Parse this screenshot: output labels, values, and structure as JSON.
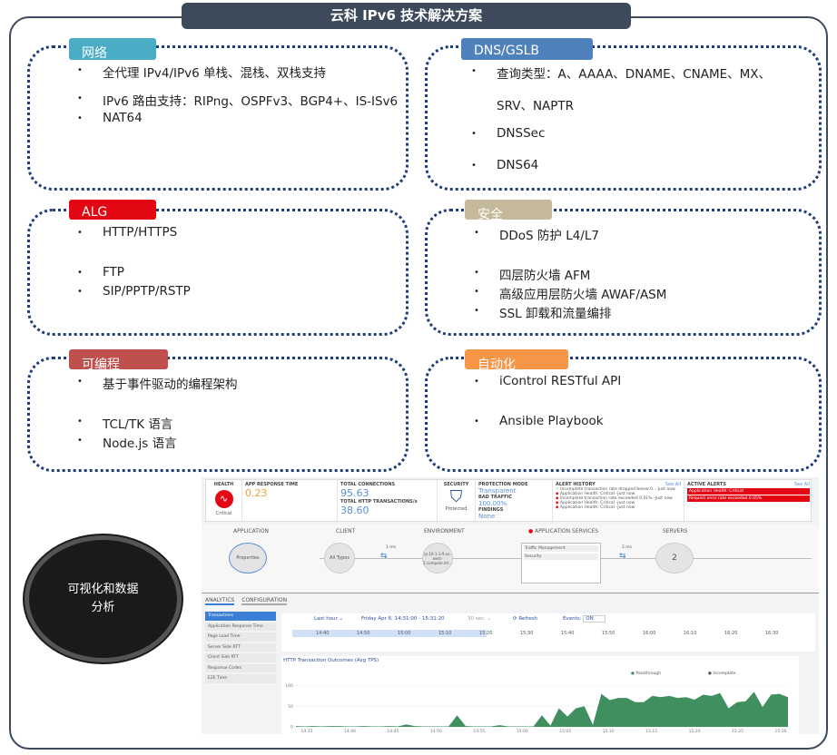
{
  "title": "云科 IPv6 技术解决方案",
  "panels": [
    {
      "tab": "网络",
      "color": "#4bacc6",
      "items": [
        "全代理 IPv4/IPv6 单栈、混栈、双栈支持",
        "IPv6 路由支持：RIPng、OSPFv3、BGP4+、IS-ISv6",
        "NAT64"
      ]
    },
    {
      "tab": "DNS/GSLB",
      "color": "#4f81bd",
      "items": [
        "查询类型：A、AAAA、DNAME、CNAME、MX、",
        "SRV、NAPTR",
        "DNSSec",
        "DNS64"
      ]
    },
    {
      "tab": "ALG",
      "color": "#e30613",
      "items": [
        "HTTP/HTTPS",
        "FTP",
        "SIP/PPTP/RSTP"
      ]
    },
    {
      "tab": "安全",
      "color": "#c4b99a",
      "items": [
        "DDoS 防护 L4/L7",
        "四层防火墙 AFM",
        "高级应用层防火墙 AWAF/ASM",
        "SSL 卸载和流量编排"
      ]
    },
    {
      "tab": "可编程",
      "color": "#c0504d",
      "items": [
        "基于事件驱动的编程架构",
        "TCL/TK 语言",
        "Node.js 语言"
      ]
    },
    {
      "tab": "自动化",
      "color": "#f79646",
      "items": [
        "iControl RESTful API",
        "Ansible Playbook"
      ]
    }
  ],
  "bullet": "•",
  "circle_text": "可视化和数据分析",
  "dashboard": {
    "health": {
      "label": "HEALTH",
      "status": "Critical"
    },
    "app_response": {
      "label": "APP RESPONSE TIME",
      "value": "0.23"
    },
    "connections": {
      "label": "TOTAL CONNECTIONS",
      "value": "95.63",
      "http_label": "TOTAL HTTP TRANSACTIONS/s",
      "http_value": "38.60"
    },
    "security": {
      "label": "SECURITY",
      "status": "Protected"
    },
    "protection": {
      "label": "PROTECTION MODE",
      "value": "Transparent",
      "bad_label": "BAD TRAFFIC",
      "bad_value": "100.00%",
      "findings_label": "FINDINGS",
      "findings_value": "None"
    },
    "alert_history": {
      "label": "ALERT HISTORY",
      "see_all": "See All",
      "items": [
        "Incomplete transaction rate dropped below 0... Just now",
        "Application Health: Critical -Just now",
        "Incomplete transaction rate exceeded 0.01% -Just now",
        "Application Health: Critical -Just now",
        "Application Health: Critical -Just now"
      ]
    },
    "active_alerts": {
      "label": "ACTIVE ALERTS",
      "see_all": "See All",
      "items": [
        "Application Health: Critical",
        "Request error rate exceeded 0.05%"
      ]
    },
    "flow": {
      "application": "APPLICATION",
      "client": "CLIENT",
      "environment": "ENVIRONMENT",
      "app_services": "APPLICATION SERVICES",
      "servers": "SERVERS",
      "properties": "Properties",
      "all_types": "All Types",
      "env_node": "ip-10-1-1-9.us-west-2.compute.int...",
      "client_latency": "1 ms",
      "server_latency": "2 ms",
      "traffic_mgmt": "Traffic Management",
      "security": "Security",
      "server_count": "2"
    },
    "tabs": [
      "ANALYTICS",
      "CONFIGURATION"
    ],
    "menu": [
      "Transactions",
      "Application Response Time",
      "Page Load Time",
      "Server Side RTT",
      "Client Side RTT",
      "Response Codes",
      "E2E Time"
    ],
    "range": "Last hour ⌄",
    "date": "Friday Apr 6, 14:31:00 - 15:31:20",
    "interval": "30 sec. ⌄",
    "refresh": "⟳ Refresh",
    "events_label": "Events:",
    "events_value": "ON",
    "timeline": [
      "14:40",
      "14:50",
      "15:00",
      "15:10",
      "15:20",
      "15:30",
      "15:40",
      "15:50",
      "16:00",
      "16:10",
      "16:20",
      "16:30"
    ]
  },
  "chart_data": {
    "type": "area",
    "title": "HTTP Transaction Outcomes (Avg TPS)",
    "series": [
      {
        "name": "Passthrough",
        "color": "#3f8f5f"
      },
      {
        "name": "Incomplete",
        "color": "#111111"
      }
    ],
    "x_ticks": [
      "14:35",
      "14:40",
      "14:45",
      "14:50",
      "14:55",
      "15:00",
      "15:05",
      "15:10",
      "15:15",
      "15:20",
      "15:25",
      "15:30"
    ],
    "y_ticks": [
      0,
      50,
      100
    ],
    "ylim": [
      0,
      110
    ],
    "values": [
      2,
      1,
      2,
      1,
      2,
      2,
      1,
      1,
      2,
      1,
      1,
      2,
      1,
      6,
      2,
      1,
      1,
      1,
      1,
      28,
      2,
      1,
      1,
      1,
      4,
      1,
      1,
      1,
      1,
      28,
      3,
      45,
      25,
      45,
      50,
      5,
      80,
      65,
      70,
      70,
      60,
      60,
      75,
      72,
      75,
      70,
      72,
      66,
      78,
      75,
      82,
      45,
      60,
      62,
      85,
      48,
      78,
      80,
      72
    ]
  }
}
